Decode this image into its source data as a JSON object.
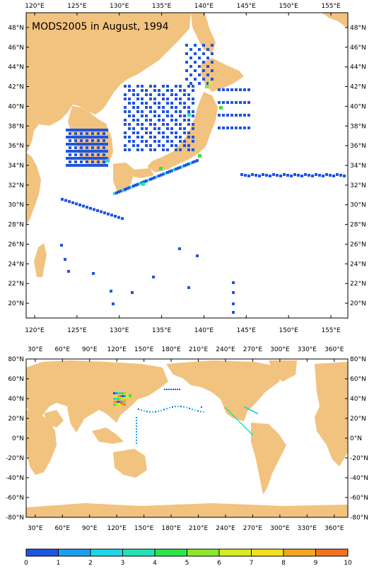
{
  "map1": {
    "title": "MODS2005 in August, 1994",
    "lon_ticks": [
      "120°E",
      "125°E",
      "130°E",
      "135°E",
      "140°E",
      "145°E",
      "150°E",
      "155°E"
    ],
    "lat_ticks": [
      "48°N",
      "46°N",
      "44°N",
      "42°N",
      "40°N",
      "38°N",
      "36°N",
      "34°N",
      "32°N",
      "30°N",
      "28°N",
      "26°N",
      "24°N",
      "22°N",
      "20°N"
    ],
    "lon_range": [
      119,
      157
    ],
    "lat_range": [
      18.5,
      49.5
    ]
  },
  "map2": {
    "lon_ticks": [
      "30°E",
      "60°E",
      "90°E",
      "120°E",
      "150°E",
      "180°E",
      "210°E",
      "240°E",
      "270°E",
      "300°E",
      "330°E",
      "360°E"
    ],
    "lat_ticks": [
      "80°N",
      "60°N",
      "40°N",
      "20°N",
      "0°N",
      "-20°N",
      "-40°N",
      "-60°N",
      "-80°N"
    ],
    "lon_range": [
      20,
      375
    ],
    "lat_range": [
      -80,
      80
    ]
  },
  "colorbar": {
    "labels": [
      "0",
      "1",
      "2",
      "3",
      "4",
      "5",
      "6",
      "7",
      "8",
      "9",
      "10"
    ],
    "colors": [
      "#1f55e0",
      "#1ba0f0",
      "#1fd8e6",
      "#22e3b4",
      "#2ee64a",
      "#8de82a",
      "#d8ec24",
      "#f5e020",
      "#f3a622",
      "#f27320"
    ]
  },
  "colors": {
    "land": "#f2c27f",
    "ocean": "#ffffff",
    "obs_low": "#1f66ee"
  }
}
